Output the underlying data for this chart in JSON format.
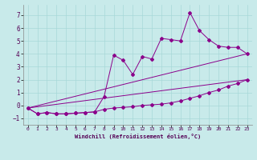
{
  "background_color": "#c8eaea",
  "line_color": "#8b008b",
  "xlabel": "Windchill (Refroidissement éolien,°C)",
  "xlim": [
    -0.5,
    23.5
  ],
  "ylim": [
    -1.5,
    7.8
  ],
  "xticks": [
    0,
    1,
    2,
    3,
    4,
    5,
    6,
    7,
    8,
    9,
    10,
    11,
    12,
    13,
    14,
    15,
    16,
    17,
    18,
    19,
    20,
    21,
    22,
    23
  ],
  "yticks": [
    -1,
    0,
    1,
    2,
    3,
    4,
    5,
    6,
    7
  ],
  "series1_x": [
    0,
    1,
    2,
    3,
    4,
    5,
    6,
    7,
    8,
    9,
    10,
    11,
    12,
    13,
    14,
    15,
    16,
    17,
    18,
    19,
    20,
    21,
    22,
    23
  ],
  "series1_y": [
    -0.2,
    -0.65,
    -0.55,
    -0.65,
    -0.65,
    -0.6,
    -0.55,
    -0.5,
    -0.3,
    -0.2,
    -0.15,
    -0.1,
    0.0,
    0.05,
    0.1,
    0.2,
    0.35,
    0.55,
    0.75,
    1.0,
    1.2,
    1.5,
    1.7,
    2.0
  ],
  "series2_x": [
    0,
    1,
    2,
    3,
    4,
    5,
    6,
    7,
    8,
    9,
    10,
    11,
    12,
    13,
    14,
    15,
    16,
    17,
    18,
    19,
    20,
    21,
    22,
    23
  ],
  "series2_y": [
    -0.2,
    -0.65,
    -0.55,
    -0.65,
    -0.65,
    -0.6,
    -0.55,
    -0.5,
    0.7,
    3.9,
    3.5,
    2.4,
    3.8,
    3.6,
    5.2,
    5.1,
    5.0,
    7.2,
    5.8,
    5.1,
    4.6,
    4.5,
    4.5,
    4.0
  ],
  "series3_x": [
    0,
    23
  ],
  "series3_y": [
    -0.2,
    4.0
  ],
  "series4_x": [
    0,
    23
  ],
  "series4_y": [
    -0.2,
    2.0
  ]
}
